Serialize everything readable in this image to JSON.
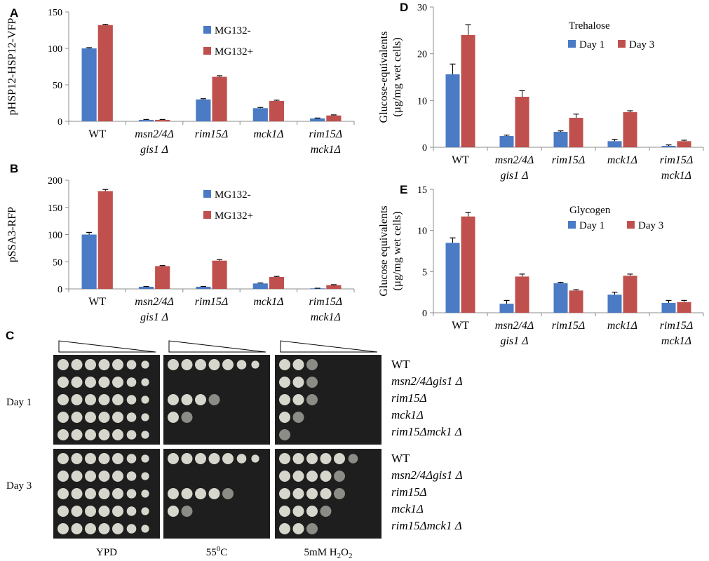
{
  "colors": {
    "blue": "#4a7bc4",
    "red": "#c0504d",
    "plate": "#1e1e1e",
    "colony": "#d6d6cc"
  },
  "charts": [
    {
      "panel": "A",
      "type": "bar",
      "ylabel": "pHSP12-HSP12-VFP",
      "ylim": [
        0,
        150
      ],
      "yticks": [
        "0",
        "50",
        "100",
        "150"
      ],
      "categories": [
        "WT",
        "msn2/4Δ|gis1 Δ",
        "rim15Δ",
        "mck1Δ",
        "rim15Δ|mck1Δ"
      ],
      "series": [
        {
          "name": "MG132-",
          "values": [
            100,
            2,
            30,
            18,
            4
          ],
          "err": [
            1,
            0.5,
            1,
            1,
            0.5
          ]
        },
        {
          "name": "MG132+",
          "values": [
            132,
            2,
            61,
            28,
            8
          ],
          "err": [
            1,
            0.5,
            1.5,
            1,
            0.8
          ]
        }
      ]
    },
    {
      "panel": "B",
      "type": "bar",
      "ylabel": "pSSA3-RFP",
      "ylim": [
        0,
        200
      ],
      "yticks": [
        "0",
        "50",
        "100",
        "150",
        "200"
      ],
      "categories": [
        "WT",
        "msn2/4Δ|gis1 Δ",
        "rim15Δ",
        "mck1Δ",
        "rim15Δ|mck1Δ"
      ],
      "series": [
        {
          "name": "MG132-",
          "values": [
            100,
            4,
            4,
            10,
            1
          ],
          "err": [
            4,
            0.5,
            0.5,
            1,
            0.3
          ]
        },
        {
          "name": "MG132+",
          "values": [
            180,
            42,
            52,
            22,
            7
          ],
          "err": [
            3,
            1,
            2,
            1,
            0.8
          ]
        }
      ]
    },
    {
      "panel": "D",
      "type": "bar",
      "title": "Trehalose",
      "ylabel": "Glucose-equivalents|(µg/mg wet cells)",
      "ylim": [
        0,
        30
      ],
      "yticks": [
        "0",
        "10",
        "20",
        "30"
      ],
      "categories": [
        "WT",
        "msn2/4Δ|gis1 Δ",
        "rim15Δ",
        "mck1Δ",
        "rim15Δ|mck1Δ"
      ],
      "series": [
        {
          "name": "Day 1",
          "values": [
            15.6,
            2.4,
            3.3,
            1.3,
            0.3
          ],
          "err": [
            2.2,
            0.2,
            0.2,
            0.4,
            0.2
          ]
        },
        {
          "name": "Day 3",
          "values": [
            24,
            10.8,
            6.3,
            7.5,
            1.3
          ],
          "err": [
            2.2,
            1.3,
            0.8,
            0.3,
            0.2
          ]
        }
      ]
    },
    {
      "panel": "E",
      "type": "bar",
      "title": "Glycogen",
      "ylabel": "Glucose equivalents|(µg/mg wet cells)",
      "ylim": [
        0,
        15
      ],
      "yticks": [
        "0",
        "5",
        "10",
        "15"
      ],
      "categories": [
        "WT",
        "msn2/4Δ|gis1 Δ",
        "rim15Δ",
        "mck1Δ",
        "rim15Δ|mck1Δ"
      ],
      "series": [
        {
          "name": "Day 1",
          "values": [
            8.5,
            1.1,
            3.6,
            2.2,
            1.2
          ],
          "err": [
            0.6,
            0.4,
            0.1,
            0.3,
            0.3
          ]
        },
        {
          "name": "Day 3",
          "values": [
            11.7,
            4.4,
            2.7,
            4.5,
            1.3
          ],
          "err": [
            0.5,
            0.3,
            0.1,
            0.2,
            0.2
          ]
        }
      ]
    }
  ],
  "panel_c": {
    "panel": "C",
    "rows": [
      "Day 1",
      "Day 3"
    ],
    "plates": [
      "YPD",
      "55",
      "5mM H"
    ],
    "plate_label_parts": {
      "temp_sup": "0",
      "temp_unit": "C",
      "h2o2_sub": "2",
      "h2o2_o": "O",
      "h2o2_sub2": "2"
    },
    "strains": [
      "WT",
      "msn2/4Δgis1 Δ",
      "rim15Δ",
      "mck1Δ",
      "rim15Δmck1 Δ"
    ],
    "growth": {
      "YPD": {
        "day1": [
          7,
          7,
          7,
          7,
          7
        ],
        "day3": [
          7,
          7,
          7,
          7,
          7
        ]
      },
      "heat": {
        "day1": [
          7,
          0,
          4,
          2,
          0
        ],
        "day3": [
          7,
          0,
          5,
          2,
          0
        ]
      },
      "h2o2": {
        "day1": [
          3,
          3,
          3,
          2,
          1
        ],
        "day3": [
          6,
          5,
          5,
          4,
          3
        ]
      }
    }
  }
}
